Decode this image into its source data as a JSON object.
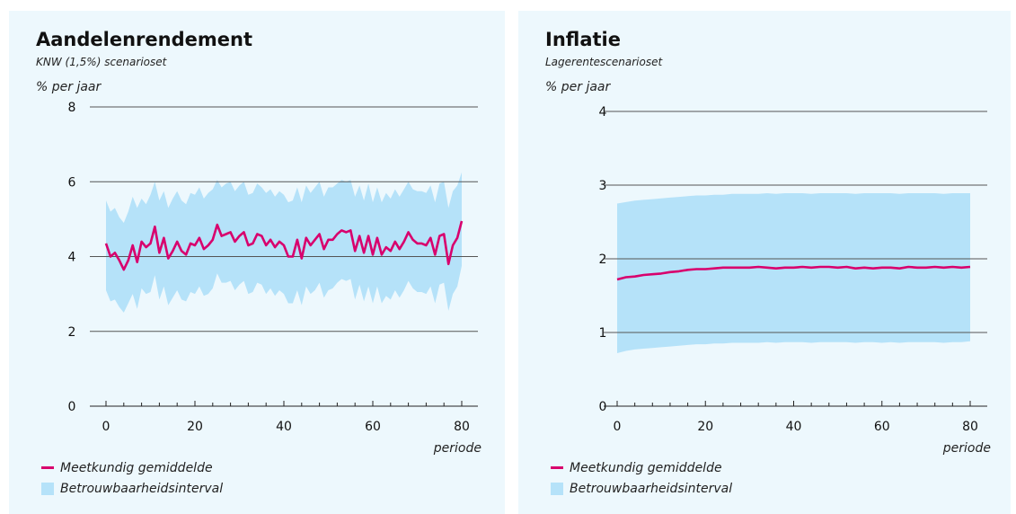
{
  "panels": [
    {
      "title": "Aandelenrendement",
      "subtitle": "KNW (1,5%) scenarioset",
      "unit": "% per jaar",
      "xlabel": "periode",
      "legend": {
        "line": "Meetkundig gemiddelde",
        "band": "Betrouwbaarheidsinterval"
      }
    },
    {
      "title": "Inflatie",
      "subtitle": "Lagerentescenarioset",
      "unit": "% per jaar",
      "xlabel": "periode",
      "legend": {
        "line": "Meetkundig gemiddelde",
        "band": "Betrouwbaarheidsinterval"
      }
    }
  ],
  "colors": {
    "panel_bg": "#edf8fd",
    "band": "#b5e2f9",
    "line": "#d8006d",
    "grid": "#555555"
  },
  "chart_data": [
    {
      "type": "line",
      "title": "Aandelenrendement",
      "subtitle": "KNW (1,5%) scenarioset",
      "ylabel": "% per jaar",
      "xlabel": "periode",
      "xlim": [
        0,
        80
      ],
      "ylim": [
        0,
        8
      ],
      "xticks": [
        0,
        20,
        40,
        60,
        80
      ],
      "yticks": [
        0,
        2,
        4,
        6,
        8
      ],
      "grid": true,
      "legend_position": "bottom-left",
      "series": [
        {
          "name": "Meetkundig gemiddelde",
          "x": [
            0,
            1,
            2,
            3,
            4,
            5,
            6,
            7,
            8,
            9,
            10,
            11,
            12,
            13,
            14,
            15,
            16,
            17,
            18,
            19,
            20,
            21,
            22,
            23,
            24,
            25,
            26,
            27,
            28,
            29,
            30,
            31,
            32,
            33,
            34,
            35,
            36,
            37,
            38,
            39,
            40,
            41,
            42,
            43,
            44,
            45,
            46,
            47,
            48,
            49,
            50,
            51,
            52,
            53,
            54,
            55,
            56,
            57,
            58,
            59,
            60,
            61,
            62,
            63,
            64,
            65,
            66,
            67,
            68,
            69,
            70,
            71,
            72,
            73,
            74,
            75,
            76,
            77,
            78,
            79,
            80
          ],
          "values": [
            4.35,
            4.0,
            4.1,
            3.9,
            3.65,
            3.9,
            4.3,
            3.85,
            4.4,
            4.25,
            4.35,
            4.8,
            4.1,
            4.5,
            3.95,
            4.15,
            4.4,
            4.15,
            4.05,
            4.35,
            4.3,
            4.5,
            4.2,
            4.3,
            4.45,
            4.85,
            4.55,
            4.6,
            4.65,
            4.4,
            4.55,
            4.65,
            4.3,
            4.35,
            4.6,
            4.55,
            4.3,
            4.45,
            4.25,
            4.4,
            4.3,
            4.0,
            4.0,
            4.45,
            3.95,
            4.5,
            4.3,
            4.45,
            4.6,
            4.2,
            4.45,
            4.45,
            4.6,
            4.7,
            4.65,
            4.7,
            4.15,
            4.55,
            4.1,
            4.55,
            4.05,
            4.5,
            4.05,
            4.25,
            4.15,
            4.4,
            4.2,
            4.4,
            4.65,
            4.45,
            4.35,
            4.35,
            4.3,
            4.5,
            4.05,
            4.55,
            4.6,
            3.8,
            4.3,
            4.5,
            4.95
          ]
        },
        {
          "name": "Betrouwbaarheidsinterval",
          "x": [
            0,
            1,
            2,
            3,
            4,
            5,
            6,
            7,
            8,
            9,
            10,
            11,
            12,
            13,
            14,
            15,
            16,
            17,
            18,
            19,
            20,
            21,
            22,
            23,
            24,
            25,
            26,
            27,
            28,
            29,
            30,
            31,
            32,
            33,
            34,
            35,
            36,
            37,
            38,
            39,
            40,
            41,
            42,
            43,
            44,
            45,
            46,
            47,
            48,
            49,
            50,
            51,
            52,
            53,
            54,
            55,
            56,
            57,
            58,
            59,
            60,
            61,
            62,
            63,
            64,
            65,
            66,
            67,
            68,
            69,
            70,
            71,
            72,
            73,
            74,
            75,
            76,
            77,
            78,
            79,
            80
          ],
          "upper": [
            5.5,
            5.2,
            5.3,
            5.05,
            4.9,
            5.2,
            5.6,
            5.3,
            5.55,
            5.4,
            5.65,
            6.0,
            5.5,
            5.75,
            5.3,
            5.55,
            5.75,
            5.5,
            5.4,
            5.7,
            5.65,
            5.85,
            5.55,
            5.7,
            5.8,
            6.05,
            5.85,
            5.95,
            6.0,
            5.75,
            5.9,
            6.0,
            5.65,
            5.7,
            5.95,
            5.85,
            5.7,
            5.8,
            5.6,
            5.75,
            5.65,
            5.45,
            5.5,
            5.85,
            5.45,
            5.9,
            5.7,
            5.85,
            6.0,
            5.6,
            5.85,
            5.85,
            5.95,
            6.05,
            6.0,
            6.05,
            5.6,
            5.9,
            5.5,
            5.95,
            5.45,
            5.85,
            5.45,
            5.7,
            5.55,
            5.8,
            5.6,
            5.8,
            6.0,
            5.8,
            5.75,
            5.75,
            5.7,
            5.9,
            5.45,
            5.95,
            6.0,
            5.3,
            5.75,
            5.9,
            6.25
          ],
          "lower": [
            3.1,
            2.8,
            2.85,
            2.65,
            2.5,
            2.75,
            3.0,
            2.6,
            3.15,
            3.0,
            3.05,
            3.5,
            2.85,
            3.2,
            2.7,
            2.9,
            3.1,
            2.85,
            2.8,
            3.05,
            3.0,
            3.2,
            2.95,
            3.0,
            3.15,
            3.55,
            3.3,
            3.3,
            3.35,
            3.1,
            3.25,
            3.35,
            3.0,
            3.05,
            3.3,
            3.25,
            3.0,
            3.15,
            2.95,
            3.1,
            3.0,
            2.75,
            2.75,
            3.1,
            2.7,
            3.2,
            3.0,
            3.1,
            3.3,
            2.9,
            3.1,
            3.15,
            3.3,
            3.4,
            3.35,
            3.4,
            2.85,
            3.25,
            2.8,
            3.2,
            2.75,
            3.2,
            2.75,
            2.95,
            2.85,
            3.1,
            2.9,
            3.1,
            3.35,
            3.15,
            3.05,
            3.05,
            3.0,
            3.2,
            2.75,
            3.25,
            3.3,
            2.55,
            3.0,
            3.2,
            3.75
          ]
        }
      ]
    },
    {
      "type": "line",
      "title": "Inflatie",
      "subtitle": "Lagerentescenarioset",
      "ylabel": "% per jaar",
      "xlabel": "periode",
      "xlim": [
        0,
        80
      ],
      "ylim": [
        0,
        4
      ],
      "xticks": [
        0,
        20,
        40,
        60,
        80
      ],
      "yticks": [
        0,
        1,
        2,
        3,
        4
      ],
      "grid": true,
      "legend_position": "bottom-left",
      "series": [
        {
          "name": "Meetkundig gemiddelde",
          "x": [
            0,
            2,
            4,
            6,
            8,
            10,
            12,
            14,
            16,
            18,
            20,
            22,
            24,
            26,
            28,
            30,
            32,
            34,
            36,
            38,
            40,
            42,
            44,
            46,
            48,
            50,
            52,
            54,
            56,
            58,
            60,
            62,
            64,
            66,
            68,
            70,
            72,
            74,
            76,
            78,
            80
          ],
          "values": [
            1.72,
            1.75,
            1.76,
            1.78,
            1.79,
            1.8,
            1.82,
            1.83,
            1.85,
            1.86,
            1.86,
            1.87,
            1.88,
            1.88,
            1.88,
            1.88,
            1.89,
            1.88,
            1.87,
            1.88,
            1.88,
            1.89,
            1.88,
            1.89,
            1.89,
            1.88,
            1.89,
            1.87,
            1.88,
            1.87,
            1.88,
            1.88,
            1.87,
            1.89,
            1.88,
            1.88,
            1.89,
            1.88,
            1.89,
            1.88,
            1.89
          ]
        },
        {
          "name": "Betrouwbaarheidsinterval",
          "x": [
            0,
            2,
            4,
            6,
            8,
            10,
            12,
            14,
            16,
            18,
            20,
            22,
            24,
            26,
            28,
            30,
            32,
            34,
            36,
            38,
            40,
            42,
            44,
            46,
            48,
            50,
            52,
            54,
            56,
            58,
            60,
            62,
            64,
            66,
            68,
            70,
            72,
            74,
            76,
            78,
            80
          ],
          "upper": [
            2.75,
            2.77,
            2.79,
            2.8,
            2.81,
            2.82,
            2.83,
            2.84,
            2.85,
            2.86,
            2.86,
            2.87,
            2.87,
            2.88,
            2.88,
            2.88,
            2.88,
            2.89,
            2.88,
            2.89,
            2.89,
            2.89,
            2.88,
            2.89,
            2.89,
            2.89,
            2.89,
            2.88,
            2.89,
            2.89,
            2.89,
            2.89,
            2.88,
            2.89,
            2.89,
            2.89,
            2.89,
            2.88,
            2.89,
            2.89,
            2.89
          ],
          "lower": [
            0.72,
            0.75,
            0.77,
            0.78,
            0.79,
            0.8,
            0.81,
            0.82,
            0.83,
            0.84,
            0.84,
            0.85,
            0.85,
            0.86,
            0.86,
            0.86,
            0.86,
            0.87,
            0.86,
            0.87,
            0.87,
            0.87,
            0.86,
            0.87,
            0.87,
            0.87,
            0.87,
            0.86,
            0.87,
            0.87,
            0.86,
            0.87,
            0.86,
            0.87,
            0.87,
            0.87,
            0.87,
            0.86,
            0.87,
            0.87,
            0.88
          ]
        }
      ]
    }
  ]
}
